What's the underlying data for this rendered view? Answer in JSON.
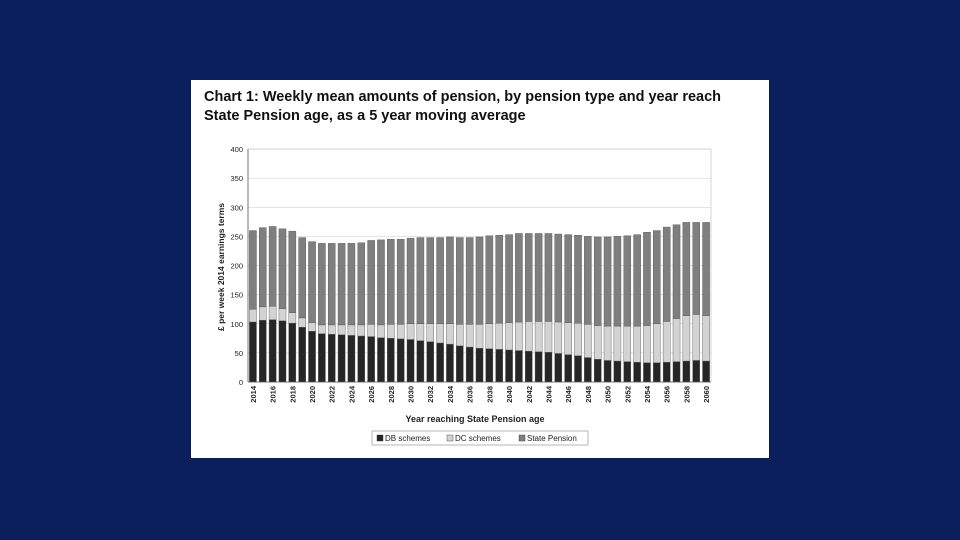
{
  "slide": {
    "background": "#0b1f5c"
  },
  "chart_title_line1": "Chart 1: Weekly mean amounts of pension, by pension type and year reach",
  "chart_title_line2": "State Pension age, as a 5 year moving average",
  "chart_data": {
    "type": "bar",
    "stacked": true,
    "title": "Chart 1: Weekly mean amounts of pension, by pension type and year reach State Pension age, as a 5 year moving average",
    "xlabel": "Year reaching State Pension age",
    "ylabel": "£ per week 2014 earnings terms",
    "ylim": [
      0,
      400
    ],
    "yticks": [
      0,
      50,
      100,
      150,
      200,
      250,
      300,
      350,
      400
    ],
    "grid": true,
    "legend_position": "bottom",
    "categories": [
      2014,
      2015,
      2016,
      2017,
      2018,
      2019,
      2020,
      2021,
      2022,
      2023,
      2024,
      2025,
      2026,
      2027,
      2028,
      2029,
      2030,
      2031,
      2032,
      2033,
      2034,
      2035,
      2036,
      2037,
      2038,
      2039,
      2040,
      2041,
      2042,
      2043,
      2044,
      2045,
      2046,
      2047,
      2048,
      2049,
      2050,
      2051,
      2052,
      2053,
      2054,
      2055,
      2056,
      2057,
      2058,
      2059,
      2060
    ],
    "tick_labels": [
      "2014",
      "",
      "2016",
      "",
      "2018",
      "",
      "2020",
      "",
      "2022",
      "",
      "2024",
      "",
      "2026",
      "",
      "2028",
      "",
      "2030",
      "",
      "2032",
      "",
      "2034",
      "",
      "2036",
      "",
      "2038",
      "",
      "2040",
      "",
      "2042",
      "",
      "2044",
      "",
      "2046",
      "",
      "2048",
      "",
      "2050",
      "",
      "2052",
      "",
      "2054",
      "",
      "2056",
      "",
      "2058",
      "",
      "2060"
    ],
    "series": [
      {
        "name": "DB schemes",
        "color": "#262626",
        "values": [
          103,
          106,
          107,
          105,
          101,
          94,
          87,
          83,
          82,
          81,
          80,
          79,
          78,
          76,
          75,
          74,
          73,
          71,
          69,
          67,
          65,
          62,
          60,
          58,
          57,
          56,
          55,
          54,
          53,
          52,
          51,
          49,
          47,
          45,
          42,
          39,
          37,
          36,
          35,
          34,
          33,
          33,
          34,
          35,
          36,
          37,
          36
        ]
      },
      {
        "name": "DC schemes",
        "color": "#d3d3d3",
        "values": [
          22,
          23,
          23,
          21,
          18,
          16,
          15,
          15,
          16,
          17,
          18,
          19,
          21,
          22,
          24,
          25,
          27,
          29,
          31,
          33,
          35,
          37,
          39,
          41,
          43,
          45,
          47,
          49,
          51,
          52,
          53,
          54,
          55,
          56,
          57,
          58,
          59,
          60,
          61,
          62,
          64,
          67,
          70,
          74,
          78,
          79,
          78
        ]
      },
      {
        "name": "State Pension",
        "color": "#7f7f7f",
        "values": [
          135,
          136,
          137,
          137,
          140,
          138,
          139,
          140,
          140,
          140,
          140,
          141,
          144,
          146,
          146,
          146,
          147,
          148,
          148,
          148,
          149,
          149,
          149,
          150,
          151,
          151,
          151,
          152,
          151,
          151,
          151,
          151,
          151,
          151,
          151,
          152,
          153,
          154,
          155,
          157,
          160,
          160,
          162,
          161,
          160,
          158,
          160
        ]
      }
    ]
  }
}
